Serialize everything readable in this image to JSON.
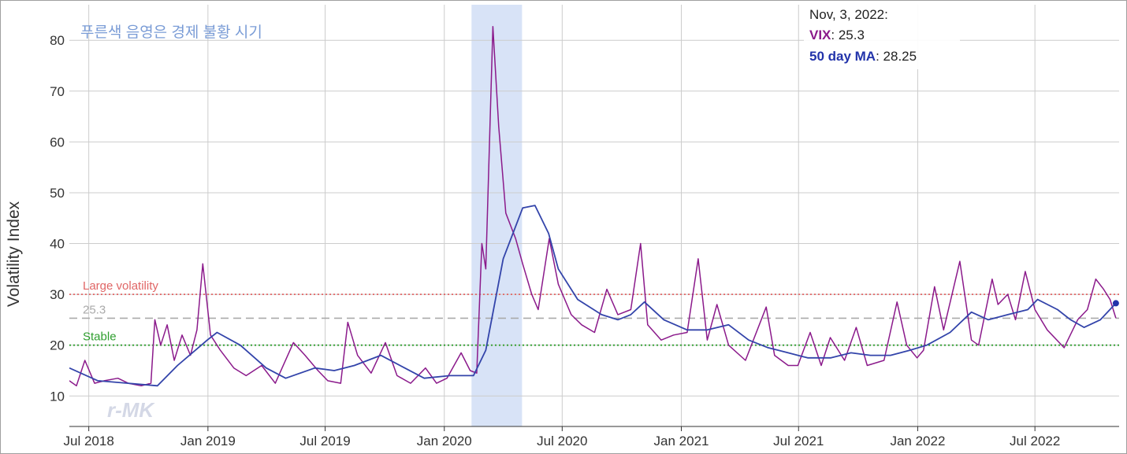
{
  "chart_data": {
    "type": "line",
    "title": "",
    "note": "푸른색 음영은 경제 불황 시기",
    "xlabel": "",
    "ylabel": "Volatility Index",
    "ylim": [
      4,
      87
    ],
    "yticks": [
      10,
      20,
      30,
      40,
      50,
      60,
      70,
      80
    ],
    "xlim": [
      "2018-06-01",
      "2022-11-08"
    ],
    "xticks": [
      {
        "date": "2018-07-01",
        "label": "Jul 2018"
      },
      {
        "date": "2019-01-01",
        "label": "Jan 2019"
      },
      {
        "date": "2019-07-01",
        "label": "Jul 2019"
      },
      {
        "date": "2020-01-01",
        "label": "Jan 2020"
      },
      {
        "date": "2020-07-01",
        "label": "Jul 2020"
      },
      {
        "date": "2021-01-01",
        "label": "Jan 2021"
      },
      {
        "date": "2021-07-01",
        "label": "Jul 2021"
      },
      {
        "date": "2022-01-01",
        "label": "Jan 2022"
      },
      {
        "date": "2022-07-01",
        "label": "Jul 2022"
      }
    ],
    "grid": true,
    "recession": {
      "start": "2020-02-12",
      "end": "2020-04-30"
    },
    "thresholds": [
      {
        "name": "Large volatility",
        "value": 30,
        "color": "#e06666"
      },
      {
        "name": "25.3",
        "value": 25.3,
        "color": "#aaaaaa"
      },
      {
        "name": "Stable",
        "value": 20,
        "color": "#2e9e2e"
      }
    ],
    "info": {
      "date": "Nov, 3, 2022:",
      "vix_name": "VIX",
      "vix_value": ": 25.3",
      "ma_name": "50 day MA",
      "ma_value": ": 28.25"
    },
    "watermark": "r-MK",
    "series": [
      {
        "name": "VIX",
        "color": "#8b1a8b",
        "points": [
          [
            "2018-06-01",
            13
          ],
          [
            "2018-06-12",
            12
          ],
          [
            "2018-06-25",
            17
          ],
          [
            "2018-07-10",
            12.5
          ],
          [
            "2018-07-25",
            13
          ],
          [
            "2018-08-15",
            13.5
          ],
          [
            "2018-08-31",
            12.5
          ],
          [
            "2018-09-20",
            12
          ],
          [
            "2018-10-05",
            12.5
          ],
          [
            "2018-10-11",
            25
          ],
          [
            "2018-10-20",
            20
          ],
          [
            "2018-10-30",
            24
          ],
          [
            "2018-11-10",
            17
          ],
          [
            "2018-11-22",
            22
          ],
          [
            "2018-12-05",
            18
          ],
          [
            "2018-12-15",
            23
          ],
          [
            "2018-12-24",
            36
          ],
          [
            "2019-01-05",
            22
          ],
          [
            "2019-01-20",
            19
          ],
          [
            "2019-02-10",
            15.5
          ],
          [
            "2019-03-01",
            14
          ],
          [
            "2019-03-25",
            16
          ],
          [
            "2019-04-15",
            12.5
          ],
          [
            "2019-05-13",
            20.5
          ],
          [
            "2019-05-31",
            18
          ],
          [
            "2019-06-20",
            15
          ],
          [
            "2019-07-05",
            13
          ],
          [
            "2019-07-25",
            12.5
          ],
          [
            "2019-08-05",
            24.5
          ],
          [
            "2019-08-20",
            18
          ],
          [
            "2019-09-10",
            14.5
          ],
          [
            "2019-10-02",
            20.5
          ],
          [
            "2019-10-20",
            14
          ],
          [
            "2019-11-10",
            12.5
          ],
          [
            "2019-12-03",
            15.5
          ],
          [
            "2019-12-20",
            12.5
          ],
          [
            "2020-01-05",
            13.5
          ],
          [
            "2020-01-27",
            18.5
          ],
          [
            "2020-02-10",
            15
          ],
          [
            "2020-02-20",
            14.5
          ],
          [
            "2020-02-28",
            40
          ],
          [
            "2020-03-05",
            35
          ],
          [
            "2020-03-16",
            82.7
          ],
          [
            "2020-03-25",
            63
          ],
          [
            "2020-04-05",
            46
          ],
          [
            "2020-04-20",
            41
          ],
          [
            "2020-05-01",
            36
          ],
          [
            "2020-05-15",
            30
          ],
          [
            "2020-05-25",
            27
          ],
          [
            "2020-06-11",
            41
          ],
          [
            "2020-06-25",
            32
          ],
          [
            "2020-07-15",
            26
          ],
          [
            "2020-07-31",
            24
          ],
          [
            "2020-08-20",
            22.5
          ],
          [
            "2020-09-08",
            31
          ],
          [
            "2020-09-25",
            26
          ],
          [
            "2020-10-15",
            27
          ],
          [
            "2020-10-30",
            40
          ],
          [
            "2020-11-10",
            24
          ],
          [
            "2020-12-01",
            21
          ],
          [
            "2020-12-20",
            22
          ],
          [
            "2021-01-10",
            22.5
          ],
          [
            "2021-01-27",
            37
          ],
          [
            "2021-02-10",
            21
          ],
          [
            "2021-02-25",
            28
          ],
          [
            "2021-03-15",
            20
          ],
          [
            "2021-04-10",
            17
          ],
          [
            "2021-05-12",
            27.5
          ],
          [
            "2021-05-25",
            18
          ],
          [
            "2021-06-15",
            16
          ],
          [
            "2021-06-30",
            16
          ],
          [
            "2021-07-19",
            22.5
          ],
          [
            "2021-08-05",
            16
          ],
          [
            "2021-08-19",
            21.5
          ],
          [
            "2021-09-10",
            17
          ],
          [
            "2021-09-28",
            23.5
          ],
          [
            "2021-10-15",
            16
          ],
          [
            "2021-11-10",
            17
          ],
          [
            "2021-11-30",
            28.5
          ],
          [
            "2021-12-15",
            20
          ],
          [
            "2021-12-31",
            17.5
          ],
          [
            "2022-01-10",
            19
          ],
          [
            "2022-01-27",
            31.5
          ],
          [
            "2022-02-10",
            23
          ],
          [
            "2022-03-07",
            36.5
          ],
          [
            "2022-03-25",
            21
          ],
          [
            "2022-04-05",
            20
          ],
          [
            "2022-04-26",
            33
          ],
          [
            "2022-05-05",
            28
          ],
          [
            "2022-05-20",
            30
          ],
          [
            "2022-06-01",
            25
          ],
          [
            "2022-06-16",
            34.5
          ],
          [
            "2022-07-01",
            27
          ],
          [
            "2022-07-20",
            23
          ],
          [
            "2022-08-15",
            19.5
          ],
          [
            "2022-09-05",
            25
          ],
          [
            "2022-09-20",
            27
          ],
          [
            "2022-10-03",
            33
          ],
          [
            "2022-10-15",
            31
          ],
          [
            "2022-10-25",
            29
          ],
          [
            "2022-11-03",
            25.3
          ]
        ]
      },
      {
        "name": "50 day MA",
        "color": "#3344aa",
        "points": [
          [
            "2018-06-01",
            15.5
          ],
          [
            "2018-07-15",
            13
          ],
          [
            "2018-08-31",
            12.5
          ],
          [
            "2018-10-15",
            12
          ],
          [
            "2018-11-15",
            16
          ],
          [
            "2018-12-31",
            21
          ],
          [
            "2019-01-15",
            22.5
          ],
          [
            "2019-02-20",
            20
          ],
          [
            "2019-04-01",
            15.5
          ],
          [
            "2019-05-01",
            13.5
          ],
          [
            "2019-06-15",
            15.5
          ],
          [
            "2019-07-15",
            15
          ],
          [
            "2019-08-15",
            16
          ],
          [
            "2019-09-25",
            18
          ],
          [
            "2019-11-01",
            15.5
          ],
          [
            "2019-12-01",
            13.5
          ],
          [
            "2020-01-10",
            14
          ],
          [
            "2020-02-15",
            14
          ],
          [
            "2020-03-05",
            19
          ],
          [
            "2020-04-01",
            37
          ],
          [
            "2020-05-01",
            47
          ],
          [
            "2020-05-20",
            47.5
          ],
          [
            "2020-06-10",
            42
          ],
          [
            "2020-06-25",
            35
          ],
          [
            "2020-07-25",
            29
          ],
          [
            "2020-08-31",
            26
          ],
          [
            "2020-09-25",
            25
          ],
          [
            "2020-10-15",
            26
          ],
          [
            "2020-11-05",
            28.5
          ],
          [
            "2020-12-05",
            25
          ],
          [
            "2021-01-10",
            23
          ],
          [
            "2021-02-10",
            23
          ],
          [
            "2021-03-15",
            24
          ],
          [
            "2021-04-15",
            21
          ],
          [
            "2021-05-15",
            19.5
          ],
          [
            "2021-06-15",
            18.5
          ],
          [
            "2021-07-15",
            17.5
          ],
          [
            "2021-08-20",
            17.5
          ],
          [
            "2021-09-20",
            18.5
          ],
          [
            "2021-10-20",
            18
          ],
          [
            "2021-11-20",
            18
          ],
          [
            "2021-12-20",
            19
          ],
          [
            "2022-01-15",
            20
          ],
          [
            "2022-02-20",
            22.5
          ],
          [
            "2022-03-25",
            26.5
          ],
          [
            "2022-04-20",
            25
          ],
          [
            "2022-05-20",
            26
          ],
          [
            "2022-06-20",
            27
          ],
          [
            "2022-07-05",
            29
          ],
          [
            "2022-08-05",
            27
          ],
          [
            "2022-08-25",
            25
          ],
          [
            "2022-09-15",
            23.5
          ],
          [
            "2022-10-10",
            25
          ],
          [
            "2022-11-03",
            28.25
          ]
        ]
      }
    ]
  }
}
